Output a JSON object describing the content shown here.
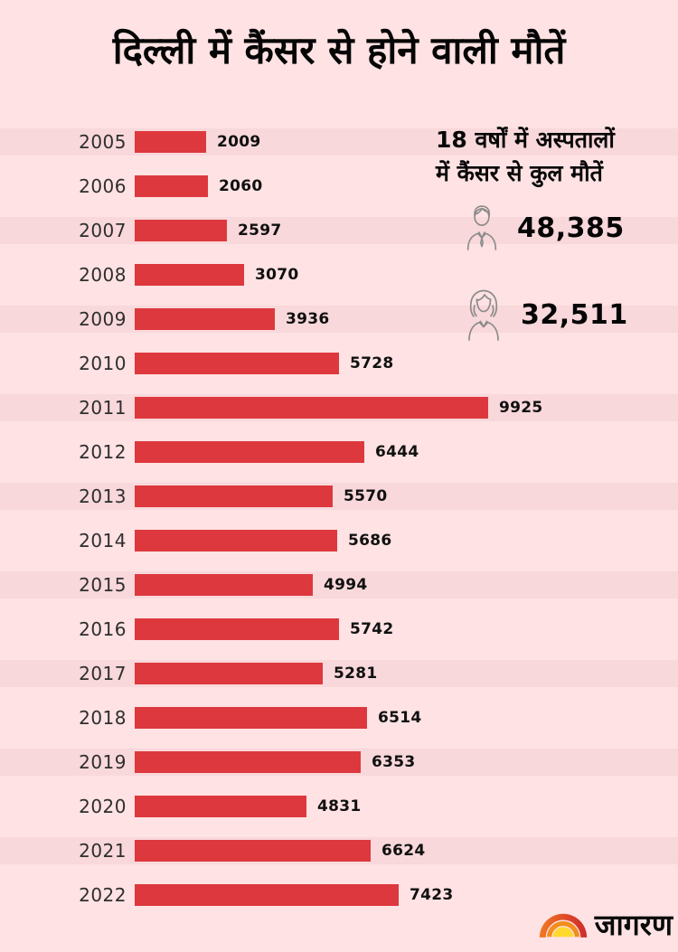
{
  "title": "दिल्ली में कैंसर से होने वाली मौतें",
  "chart_data": {
    "type": "bar",
    "orientation": "horizontal",
    "title": "दिल्ली में कैंसर से होने वाली मौतें",
    "categories": [
      "2005",
      "2006",
      "2007",
      "2008",
      "2009",
      "2010",
      "2011",
      "2012",
      "2013",
      "2014",
      "2015",
      "2016",
      "2017",
      "2018",
      "2019",
      "2020",
      "2021",
      "2022"
    ],
    "values": [
      2009,
      2060,
      2597,
      3070,
      3936,
      5728,
      9925,
      6444,
      5570,
      5686,
      4994,
      5742,
      5281,
      6514,
      6353,
      4831,
      6624,
      7423
    ],
    "xlim": [
      0,
      9925
    ],
    "grid": false,
    "legend": false,
    "value_labels": "right-of-bar",
    "striped_rows": "alternate-starting-first"
  },
  "summary": {
    "heading_line1": "18 वर्षों में अस्पतालों",
    "heading_line2": "में कैंसर से कुल मौतें",
    "male_total": "48,385",
    "female_total": "32,511"
  },
  "branding": {
    "logo_text": "जागरण"
  },
  "colors": {
    "background": "#ffe2e3",
    "row_stripe": "#f8d8db",
    "bar": "#dd383d",
    "text": "#111111",
    "icon_stroke": "#8b8b8b",
    "sun_red": "#cd2b2d",
    "sun_orange": "#f28d1e",
    "sun_yellow": "#ffd92e"
  }
}
